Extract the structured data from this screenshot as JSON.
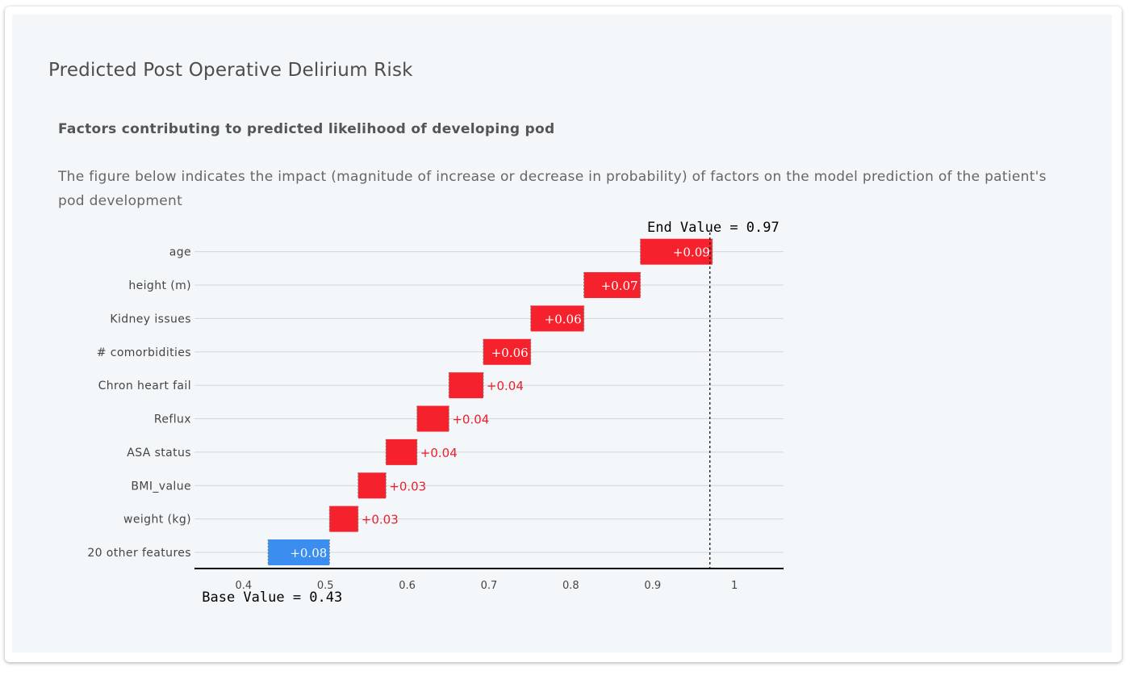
{
  "page": {
    "title": "Predicted Post Operative Delirium Risk",
    "section_title": "Factors contributing to predicted likelihood of developing pod",
    "description": "The figure below indicates the impact (magnitude of increase or decrease in probability) of factors on the model prediction of the patient's pod development"
  },
  "chart_data": {
    "type": "bar",
    "subtype": "waterfall",
    "base_value": 0.43,
    "end_value": 0.97,
    "base_label": "Base Value = 0.43",
    "end_label": "End Value = 0.97",
    "xlim": [
      0.34,
      1.06
    ],
    "xticks": [
      0.4,
      0.5,
      0.6,
      0.7,
      0.8,
      0.9,
      1
    ],
    "xtick_labels": [
      "0.4",
      "0.5",
      "0.6",
      "0.7",
      "0.8",
      "0.9",
      "1"
    ],
    "colors": {
      "positive": "#f5222d",
      "negative": "#3b8ef0",
      "positive_text": "#e8202e"
    },
    "categories": [
      "20 other features",
      "weight (kg)",
      "BMI_value",
      "ASA status",
      "Reflux",
      "Chron heart fail",
      "# comorbidities",
      "Kidney issues",
      "height (m)",
      "age"
    ],
    "bars": [
      {
        "start": 0.43,
        "end": 0.505,
        "label": "+0.08",
        "color_key": "negative",
        "label_inside": true
      },
      {
        "start": 0.505,
        "end": 0.54,
        "label": "+0.03",
        "color_key": "positive",
        "label_inside": false
      },
      {
        "start": 0.54,
        "end": 0.574,
        "label": "+0.03",
        "color_key": "positive",
        "label_inside": false
      },
      {
        "start": 0.574,
        "end": 0.612,
        "label": "+0.04",
        "color_key": "positive",
        "label_inside": false
      },
      {
        "start": 0.612,
        "end": 0.651,
        "label": "+0.04",
        "color_key": "positive",
        "label_inside": false
      },
      {
        "start": 0.651,
        "end": 0.693,
        "label": "+0.04",
        "color_key": "positive",
        "label_inside": false
      },
      {
        "start": 0.693,
        "end": 0.751,
        "label": "+0.06",
        "color_key": "positive",
        "label_inside": true
      },
      {
        "start": 0.751,
        "end": 0.816,
        "label": "+0.06",
        "color_key": "positive",
        "label_inside": true
      },
      {
        "start": 0.816,
        "end": 0.885,
        "label": "+0.07",
        "color_key": "positive",
        "label_inside": true
      },
      {
        "start": 0.885,
        "end": 0.973,
        "label": "+0.09",
        "color_key": "positive",
        "label_inside": true
      }
    ],
    "grid": true
  }
}
